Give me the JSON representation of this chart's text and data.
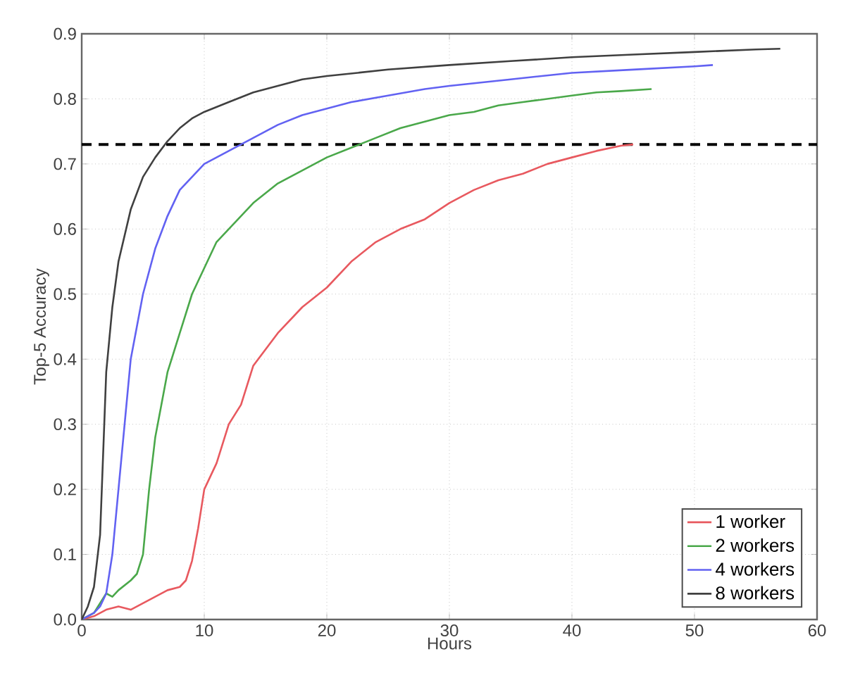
{
  "chart_data": {
    "type": "line",
    "xlabel": "Hours",
    "ylabel": "Top-5 Accuracy",
    "xlim": [
      0,
      60
    ],
    "ylim": [
      0,
      0.9
    ],
    "xticks": [
      0,
      10,
      20,
      30,
      40,
      50,
      60
    ],
    "yticks": [
      {
        "value": 0,
        "label": "0.0"
      },
      0.1,
      0.2,
      0.3,
      0.4,
      0.5,
      0.6,
      0.7,
      0.8,
      0.9
    ],
    "grid": true,
    "legend": "bottom right",
    "marker": "none",
    "line_style": "solid",
    "ref_lines": [
      {
        "axis": "y",
        "value": 0.73,
        "color": "#000000",
        "line_style": "dashed"
      }
    ],
    "series": [
      {
        "name": "1 worker",
        "color": "#e8595f",
        "x": [
          0,
          1,
          2,
          3,
          4,
          5,
          6,
          7,
          8,
          8.5,
          9,
          9.5,
          10,
          11,
          12,
          13,
          14,
          16,
          18,
          20,
          22,
          24,
          26,
          28,
          30,
          32,
          34,
          36,
          38,
          40,
          42,
          44,
          45
        ],
        "values": [
          0,
          0.005,
          0.015,
          0.02,
          0.015,
          0.025,
          0.035,
          0.045,
          0.05,
          0.06,
          0.09,
          0.14,
          0.2,
          0.24,
          0.3,
          0.33,
          0.39,
          0.44,
          0.48,
          0.51,
          0.55,
          0.58,
          0.6,
          0.615,
          0.64,
          0.66,
          0.675,
          0.685,
          0.7,
          0.71,
          0.72,
          0.728,
          0.73
        ]
      },
      {
        "name": "2 workers",
        "color": "#4aa84a",
        "x": [
          0,
          1,
          2,
          2.5,
          3,
          4,
          4.5,
          5,
          5.5,
          6,
          6.5,
          7,
          8,
          9,
          10,
          11,
          12,
          14,
          16,
          18,
          20,
          22,
          24,
          26,
          28,
          30,
          32,
          34,
          36,
          38,
          40,
          42,
          44,
          46.5
        ],
        "values": [
          0,
          0.01,
          0.04,
          0.035,
          0.045,
          0.06,
          0.07,
          0.1,
          0.2,
          0.28,
          0.33,
          0.38,
          0.44,
          0.5,
          0.54,
          0.58,
          0.6,
          0.64,
          0.67,
          0.69,
          0.71,
          0.725,
          0.74,
          0.755,
          0.765,
          0.775,
          0.78,
          0.79,
          0.795,
          0.8,
          0.805,
          0.81,
          0.812,
          0.815
        ]
      },
      {
        "name": "4 workers",
        "color": "#6262f2",
        "x": [
          0,
          1,
          1.5,
          2,
          2.5,
          3,
          3.5,
          4,
          4.5,
          5,
          6,
          7,
          8,
          9,
          10,
          12,
          14,
          16,
          18,
          20,
          22,
          25,
          28,
          30,
          35,
          40,
          45,
          50,
          51.5
        ],
        "values": [
          0,
          0.01,
          0.02,
          0.04,
          0.1,
          0.2,
          0.3,
          0.4,
          0.45,
          0.5,
          0.57,
          0.62,
          0.66,
          0.68,
          0.7,
          0.72,
          0.74,
          0.76,
          0.775,
          0.785,
          0.795,
          0.805,
          0.815,
          0.82,
          0.83,
          0.84,
          0.845,
          0.85,
          0.852
        ]
      },
      {
        "name": "8 workers",
        "color": "#404040",
        "x": [
          0,
          0.5,
          1,
          1.5,
          2,
          2.5,
          3,
          4,
          5,
          6,
          7,
          8,
          9,
          10,
          12,
          14,
          16,
          18,
          20,
          25,
          30,
          35,
          40,
          45,
          50,
          55,
          57
        ],
        "values": [
          0,
          0.02,
          0.05,
          0.13,
          0.38,
          0.48,
          0.55,
          0.63,
          0.68,
          0.71,
          0.735,
          0.755,
          0.77,
          0.78,
          0.795,
          0.81,
          0.82,
          0.83,
          0.835,
          0.845,
          0.852,
          0.858,
          0.864,
          0.868,
          0.872,
          0.876,
          0.877
        ]
      }
    ]
  }
}
